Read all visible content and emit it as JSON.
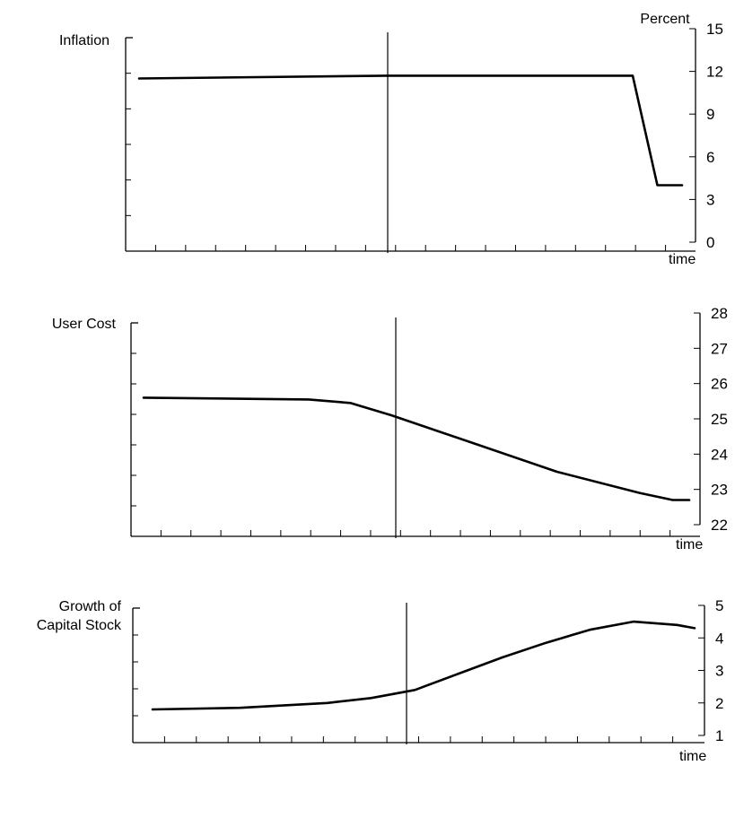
{
  "chart_data": [
    {
      "type": "line",
      "ylabel": "Inflation",
      "unit_label": "Percent",
      "xlabel": "time",
      "ylim": [
        0,
        15
      ],
      "yticks": [
        "0",
        "3",
        "6",
        "9",
        "12",
        "15"
      ],
      "x": [
        0,
        30,
        60,
        63,
        66
      ],
      "values": [
        11.5,
        11.7,
        11.7,
        4.0,
        4.0
      ],
      "event_x": 30
    },
    {
      "type": "line",
      "ylabel": "User Cost",
      "xlabel": "time",
      "ylim": [
        22,
        28
      ],
      "yticks": [
        "22",
        "23",
        "24",
        "25",
        "26",
        "27",
        "28"
      ],
      "x": [
        0,
        20,
        25,
        30,
        40,
        50,
        60,
        64,
        66
      ],
      "values": [
        25.6,
        25.55,
        25.45,
        25.1,
        24.3,
        23.5,
        22.9,
        22.7,
        22.7
      ],
      "event_x": 30
    },
    {
      "type": "line",
      "ylabel": "Growth of\nCapital Stock",
      "xlabel": "time",
      "ylim": [
        1,
        5
      ],
      "yticks": [
        "1",
        "2",
        "3",
        "4",
        "5"
      ],
      "x": [
        0,
        10,
        20,
        25,
        30,
        35,
        40,
        45,
        50,
        55,
        60,
        62
      ],
      "values": [
        1.8,
        1.85,
        2.0,
        2.15,
        2.4,
        2.9,
        3.4,
        3.85,
        4.25,
        4.5,
        4.4,
        4.3
      ],
      "event_x": 30
    }
  ]
}
